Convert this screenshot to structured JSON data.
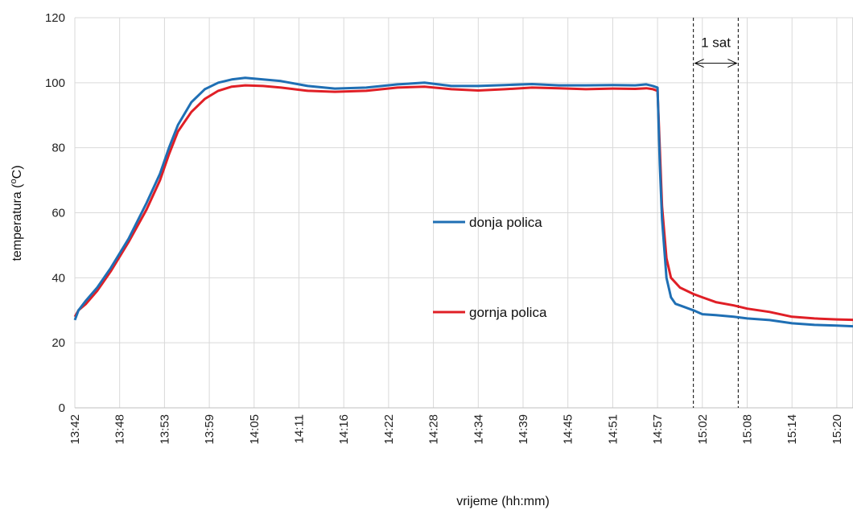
{
  "chart_data": {
    "type": "line",
    "title": "",
    "xlabel": "vrijeme (hh:mm)",
    "ylabel": "temperatura (°C)",
    "ylabel_parts": [
      "temperatura (",
      "o",
      "C)"
    ],
    "ylim": [
      0,
      120
    ],
    "yticks": [
      "0",
      "20",
      "40",
      "60",
      "80",
      "100",
      "120"
    ],
    "x_ticks": [
      "13:42",
      "13:48",
      "13:53",
      "13:59",
      "14:05",
      "14:11",
      "14:16",
      "14:22",
      "14:28",
      "14:34",
      "14:39",
      "14:45",
      "14:51",
      "14:57",
      "15:02",
      "15:08",
      "15:14",
      "15:20"
    ],
    "grid": true,
    "legend_position": "center-right",
    "annotation": {
      "text": "1 sat",
      "x_start": 13.8,
      "x_end": 14.8,
      "y": 106
    },
    "series": [
      {
        "name": "donja polica",
        "color": "#1f6fb4",
        "x": [
          0,
          0.08,
          0.25,
          0.5,
          0.8,
          1.2,
          1.6,
          1.9,
          2.1,
          2.3,
          2.6,
          2.9,
          3.2,
          3.5,
          3.8,
          4.2,
          4.6,
          5.2,
          5.8,
          6.5,
          7.2,
          7.8,
          8.4,
          9.0,
          9.6,
          10.2,
          10.8,
          11.4,
          12.0,
          12.5,
          12.75,
          12.9,
          13.0,
          13.05,
          13.1,
          13.2,
          13.3,
          13.4,
          13.6,
          13.8,
          14.0,
          14.3,
          14.7,
          15.0,
          15.5,
          16.0,
          16.5,
          17.0,
          17.5,
          17.9
        ],
        "y": [
          27,
          30,
          33,
          37,
          43,
          52,
          63,
          72,
          80,
          87,
          94,
          98,
          100,
          101,
          101.5,
          101,
          100.5,
          99,
          98.2,
          98.5,
          99.5,
          100,
          99,
          99,
          99.3,
          99.6,
          99.2,
          99.2,
          99.3,
          99.2,
          99.5,
          99,
          98.5,
          75,
          58,
          40,
          34,
          32,
          31,
          30,
          28.8,
          28.5,
          28,
          27.5,
          27,
          26,
          25.5,
          25.3,
          25,
          24
        ]
      },
      {
        "name": "gornja polica",
        "color": "#e01f26",
        "x": [
          0,
          0.08,
          0.25,
          0.5,
          0.8,
          1.2,
          1.6,
          1.9,
          2.1,
          2.3,
          2.6,
          2.9,
          3.2,
          3.5,
          3.8,
          4.2,
          4.6,
          5.2,
          5.8,
          6.5,
          7.2,
          7.8,
          8.4,
          9.0,
          9.6,
          10.2,
          10.8,
          11.4,
          12.0,
          12.5,
          12.75,
          12.9,
          13.0,
          13.05,
          13.1,
          13.2,
          13.3,
          13.5,
          13.8,
          14.0,
          14.3,
          14.7,
          15.0,
          15.5,
          16.0,
          16.5,
          17.0,
          17.5,
          17.9
        ],
        "y": [
          28,
          30,
          32,
          36,
          42,
          51,
          61,
          70,
          78,
          85,
          91,
          95,
          97.5,
          98.8,
          99.2,
          99,
          98.5,
          97.5,
          97.2,
          97.5,
          98.5,
          98.8,
          98,
          97.6,
          98,
          98.5,
          98.3,
          98,
          98.2,
          98.1,
          98.3,
          98,
          97.5,
          80,
          62,
          46,
          40,
          37,
          35,
          34,
          32.5,
          31.5,
          30.5,
          29.5,
          28,
          27.5,
          27.2,
          27,
          26.5
        ]
      }
    ]
  }
}
